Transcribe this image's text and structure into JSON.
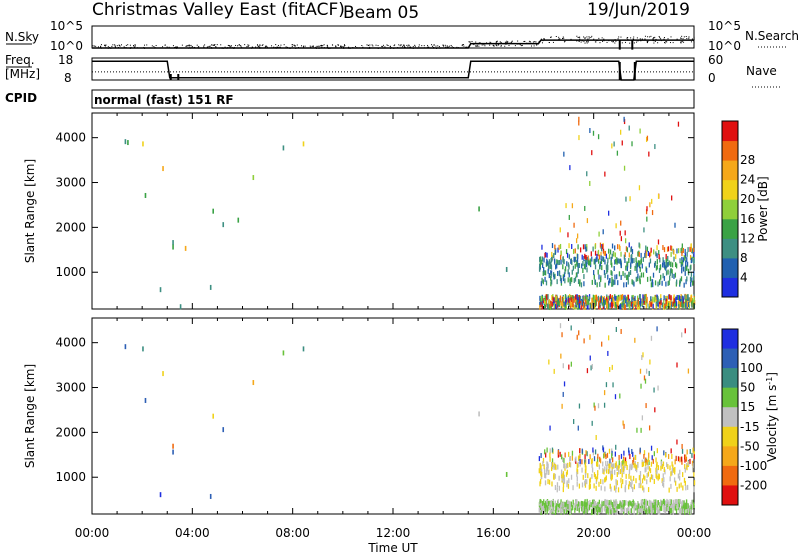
{
  "header": {
    "station": "Christmas Valley East (fitACF)",
    "beam": "Beam 05",
    "date": "19/Jun/2019"
  },
  "rows": {
    "nsky": {
      "left_label": "N.Sky",
      "right_label": "N.Search",
      "tick_left_top": "10^5",
      "tick_left_bottom": "10^0",
      "tick_right_top": "10^5",
      "tick_right_bottom": "10^0"
    },
    "freq": {
      "left_label_1": "Freq.",
      "left_label_2": "[MHz]",
      "right_label": "Nave",
      "tick_left_top": "18",
      "tick_left_bottom": "8",
      "tick_right_top": "60",
      "tick_right_bottom": "0"
    },
    "cpid": {
      "label": "CPID",
      "value": "normal (fast) 151 RF"
    }
  },
  "axes": {
    "ylabel": "Slant Range [km]",
    "xlabel": "Time UT",
    "yticks": [
      "1000",
      "2000",
      "3000",
      "4000"
    ],
    "xticks": [
      "00:00",
      "04:00",
      "08:00",
      "12:00",
      "16:00",
      "20:00",
      "00:00"
    ]
  },
  "colorbars": {
    "power": {
      "label": "Power [dB]",
      "ticks": [
        "4",
        "8",
        "12",
        "16",
        "20",
        "24",
        "28"
      ],
      "colors": [
        "#1f2fe0",
        "#2060b0",
        "#3d8f82",
        "#3aa245",
        "#8fcf3a",
        "#f0d21a",
        "#f5a81a",
        "#f06a10",
        "#e01010"
      ]
    },
    "velocity": {
      "label": "Velocity [m s^-1]",
      "ticks": [
        "200",
        "100",
        "50",
        "15",
        "-15",
        "-50",
        "-100",
        "-200"
      ],
      "colors": [
        "#1f2fe0",
        "#2d5fb5",
        "#3a8d80",
        "#68c23a",
        "#c0c0c0",
        "#f0d21a",
        "#f5a81a",
        "#f06a10",
        "#e01010"
      ]
    }
  },
  "chart_data": [
    {
      "type": "heatmap",
      "title": "Power",
      "xlabel": "Time UT",
      "ylabel": "Slant Range [km]",
      "xlim": [
        0,
        24
      ],
      "ylim": [
        180,
        4550
      ],
      "colorbar_label": "Power [dB]",
      "scattered_points": [
        [
          1.3,
          3900,
          8
        ],
        [
          1.4,
          3880,
          12
        ],
        [
          2.0,
          3850,
          20
        ],
        [
          2.8,
          3300,
          24
        ],
        [
          2.1,
          2700,
          12
        ],
        [
          3.2,
          1650,
          8
        ],
        [
          3.2,
          1550,
          12
        ],
        [
          3.7,
          1520,
          24
        ],
        [
          4.8,
          2350,
          12
        ],
        [
          5.2,
          2050,
          8
        ],
        [
          5.8,
          2150,
          12
        ],
        [
          6.4,
          3100,
          16
        ],
        [
          8.4,
          3850,
          20
        ],
        [
          7.6,
          3760,
          8
        ],
        [
          2.7,
          600,
          8
        ],
        [
          4.7,
          650,
          8
        ],
        [
          3.5,
          220,
          8
        ],
        [
          15.4,
          2400,
          12
        ],
        [
          16.5,
          1050,
          8
        ]
      ],
      "dense_region": {
        "x_from": 17.8,
        "x_to": 24,
        "y_from": 180,
        "y_to": 4550,
        "note": "dense scatter after 17:50 UT"
      }
    },
    {
      "type": "heatmap",
      "title": "Velocity",
      "xlabel": "Time UT",
      "ylabel": "Slant Range [km]",
      "xlim": [
        0,
        24
      ],
      "ylim": [
        180,
        4550
      ],
      "colorbar_label": "Velocity [m s^-1]",
      "scattered_points": [
        [
          1.3,
          3900,
          100
        ],
        [
          2.0,
          3850,
          50
        ],
        [
          2.8,
          3300,
          -50
        ],
        [
          2.1,
          2700,
          100
        ],
        [
          3.2,
          1680,
          -200
        ],
        [
          3.2,
          1550,
          100
        ],
        [
          4.8,
          2350,
          -50
        ],
        [
          5.2,
          2050,
          100
        ],
        [
          6.4,
          3100,
          -100
        ],
        [
          8.4,
          3850,
          50
        ],
        [
          7.6,
          3760,
          15
        ],
        [
          2.7,
          600,
          200
        ],
        [
          4.7,
          560,
          100
        ],
        [
          15.4,
          2400,
          -15
        ],
        [
          16.5,
          1050,
          15
        ]
      ],
      "dense_region": {
        "x_from": 17.8,
        "x_to": 24,
        "y_from": 180,
        "y_to": 4550,
        "note": "dense scatter after 17:50 UT"
      }
    },
    {
      "type": "line",
      "title": "N.Sky / N.Search",
      "xlim": [
        0,
        24
      ],
      "series": [
        {
          "name": "N.Sky",
          "x": [
            0,
            3,
            6,
            9,
            12,
            15,
            17.8,
            20,
            22,
            24
          ],
          "values": [
            1,
            3,
            5,
            4,
            4,
            6,
            40,
            300,
            200,
            100
          ]
        },
        {
          "name": "N.Search",
          "x": [
            0,
            15,
            15.1,
            17.8,
            17.9,
            24
          ],
          "values": [
            1,
            1,
            10,
            10,
            60,
            60
          ]
        }
      ]
    },
    {
      "type": "line",
      "title": "Freq. / Nave",
      "xlim": [
        0,
        24
      ],
      "series": [
        {
          "name": "Freq. [MHz]",
          "x": [
            0,
            3,
            3.1,
            15,
            15.1,
            21,
            21.1,
            21.6,
            21.7,
            24
          ],
          "values": [
            16.5,
            16.5,
            9,
            9,
            16.5,
            16.5,
            8,
            8,
            16.5,
            16.5
          ]
        },
        {
          "name": "Nave",
          "x": [
            0,
            15,
            15.1,
            24
          ],
          "values": [
            22,
            22,
            22,
            22
          ]
        }
      ]
    }
  ]
}
